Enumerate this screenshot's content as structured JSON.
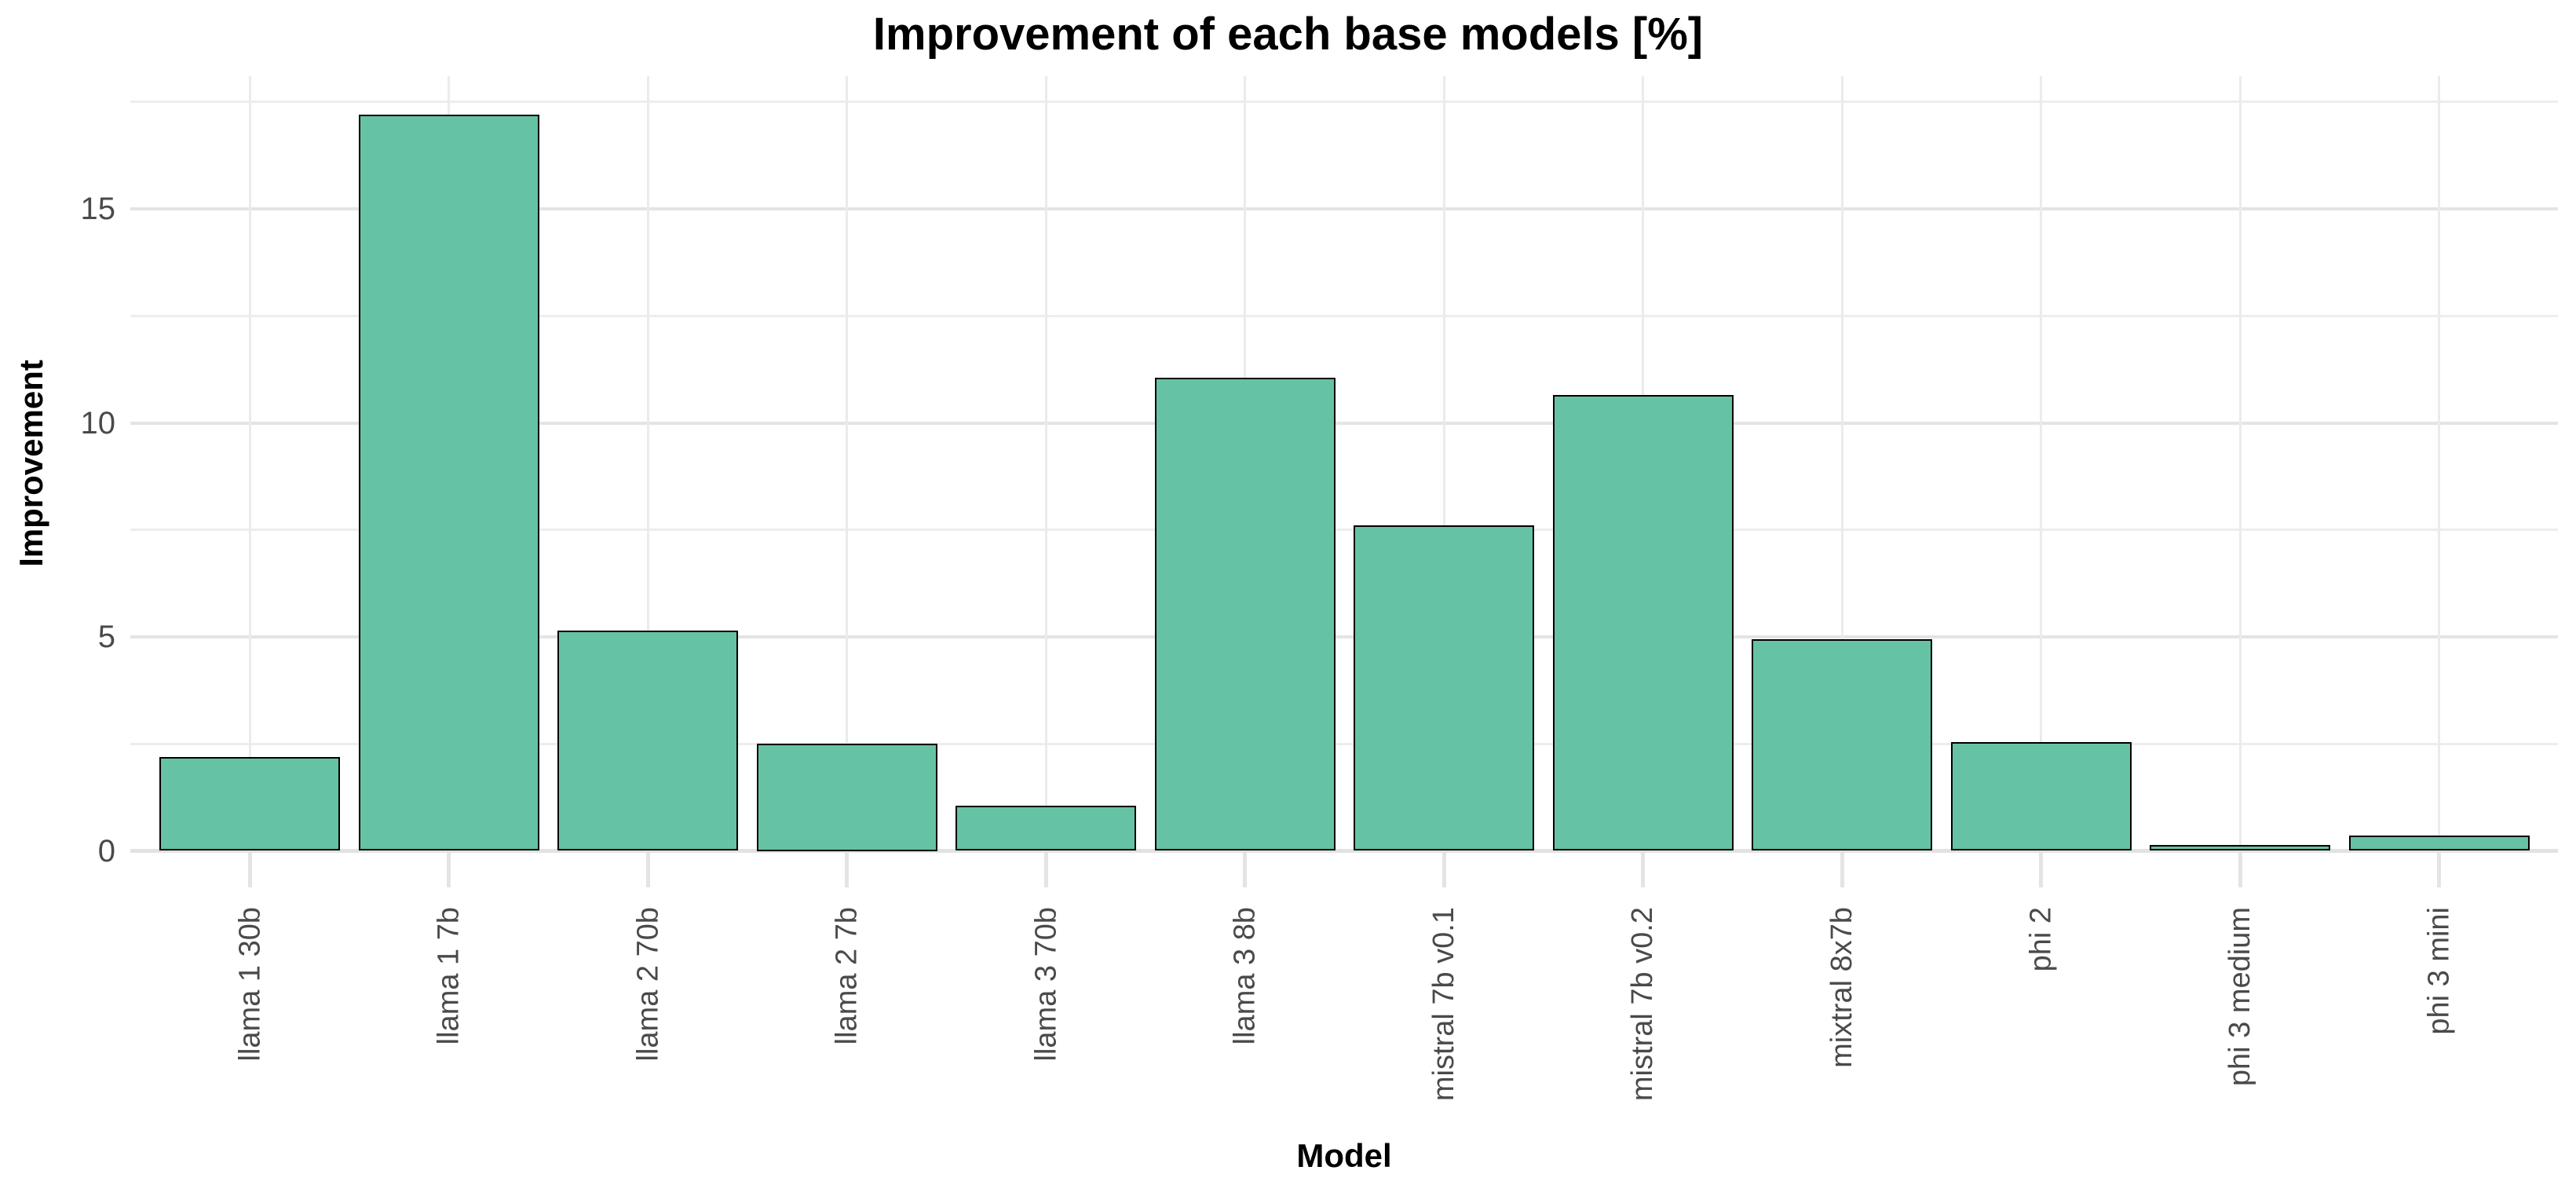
{
  "title": "Improvement of each base models [%]",
  "colors": {
    "bar_fill": "#66c2a5",
    "bar_border": "#000000",
    "grid_major": "#e4e4e4",
    "grid_minor": "#ededed",
    "axis_line": "#e2e2e2",
    "tick_label_text": "#4a4a4a",
    "title_text": "#000000",
    "background": "#ffffff"
  },
  "chart_data": {
    "type": "bar",
    "title": "Improvement of each base models [%]",
    "xlabel": "Model",
    "ylabel": "Improvement",
    "categories": [
      "llama 1 30b",
      "llama 1 7b",
      "llama 2 70b",
      "llama 2 7b",
      "llama 3 70b",
      "llama 3 8b",
      "mistral 7b v0.1",
      "mistral 7b v0.2",
      "mixtral 8x7b",
      "phi 2",
      "phi 3 medium",
      "phi 3 mini"
    ],
    "values": [
      2.2,
      17.2,
      5.15,
      2.5,
      1.05,
      11.05,
      7.6,
      10.65,
      4.95,
      2.55,
      0.13,
      0.35
    ],
    "ylim": [
      0,
      18.1
    ],
    "yticks": [
      0,
      5,
      10,
      15
    ],
    "ytick_labels": [
      "0",
      "5",
      "10",
      "15"
    ],
    "yticks_minor": [
      2.5,
      7.5,
      12.5,
      17.5
    ],
    "grid": "on",
    "legend": "none",
    "bar_color": "#66c2a5",
    "bar_border_color": "#000000"
  }
}
